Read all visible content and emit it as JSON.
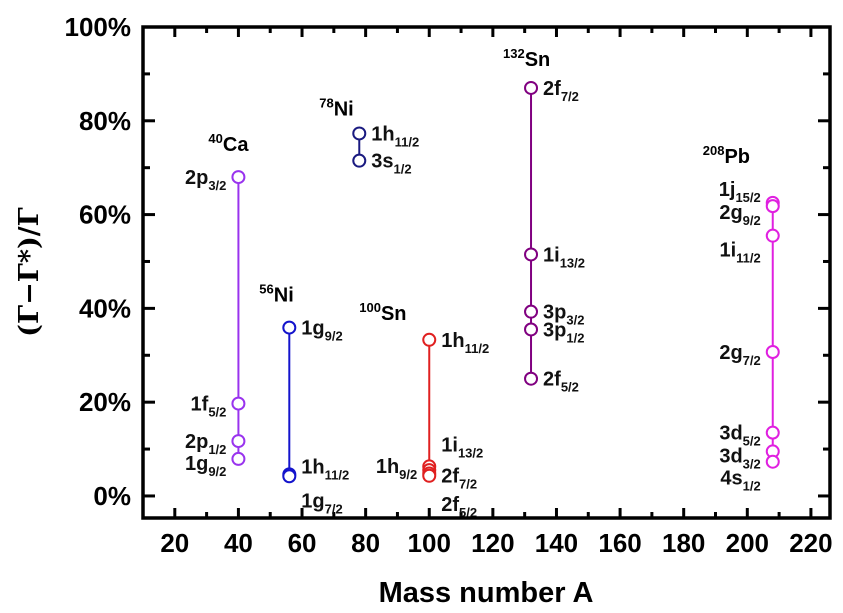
{
  "chart_data": {
    "type": "scatter",
    "xlabel": "Mass number A",
    "ylabel": "(Γ−Γ*)/Γ",
    "xlim": [
      10,
      226
    ],
    "ylim": [
      -4.7,
      100
    ],
    "xticks": [
      20,
      40,
      60,
      80,
      100,
      120,
      140,
      160,
      180,
      200,
      220
    ],
    "yticks": [
      0,
      20,
      40,
      60,
      80,
      100
    ],
    "ytick_labels": [
      "0%",
      "20%",
      "40%",
      "60%",
      "80%",
      "100%"
    ],
    "grid": false,
    "series": [
      {
        "mass": "40",
        "element": "Ca",
        "A": 40,
        "color": "#9933ee",
        "points": [
          {
            "orbital": "2p",
            "j": "3/2",
            "value": 68.0
          },
          {
            "orbital": "1f",
            "j": "5/2",
            "value": 19.7
          },
          {
            "orbital": "2p",
            "j": "1/2",
            "value": 11.7
          },
          {
            "orbital": "1g",
            "j": "9/2",
            "value": 7.9
          }
        ]
      },
      {
        "mass": "56",
        "element": "Ni",
        "A": 56,
        "color": "#1414cc",
        "points": [
          {
            "orbital": "1g",
            "j": "9/2",
            "value": 35.9
          },
          {
            "orbital": "1h",
            "j": "11/2",
            "value": 4.6
          },
          {
            "orbital": "1g",
            "j": "7/2",
            "value": 4.2
          }
        ]
      },
      {
        "mass": "78",
        "element": "Ni",
        "A": 78,
        "color": "#1a1a80",
        "points": [
          {
            "orbital": "1h",
            "j": "11/2",
            "value": 77.3
          },
          {
            "orbital": "3s",
            "j": "1/2",
            "value": 71.5
          }
        ]
      },
      {
        "mass": "100",
        "element": "Sn",
        "A": 100,
        "color": "#e02020",
        "points": [
          {
            "orbital": "1h",
            "j": "11/2",
            "value": 33.3
          },
          {
            "orbital": "1i",
            "j": "13/2",
            "value": 6.3
          },
          {
            "orbital": "1h",
            "j": "9/2",
            "value": 5.5
          },
          {
            "orbital": "2f",
            "j": "7/2",
            "value": 4.8
          },
          {
            "orbital": "2f",
            "j": "5/2",
            "value": 4.3
          }
        ]
      },
      {
        "mass": "132",
        "element": "Sn",
        "A": 132,
        "color": "#800080",
        "points": [
          {
            "orbital": "2f",
            "j": "7/2",
            "value": 87.0
          },
          {
            "orbital": "1i",
            "j": "13/2",
            "value": 51.5
          },
          {
            "orbital": "3p",
            "j": "3/2",
            "value": 39.3
          },
          {
            "orbital": "3p",
            "j": "1/2",
            "value": 35.5
          },
          {
            "orbital": "2f",
            "j": "5/2",
            "value": 25.0
          }
        ]
      },
      {
        "mass": "208",
        "element": "Pb",
        "A": 208,
        "color": "#e020e0",
        "points": [
          {
            "orbital": "1j",
            "j": "15/2",
            "value": 62.5
          },
          {
            "orbital": "2g",
            "j": "9/2",
            "value": 61.8
          },
          {
            "orbital": "1i",
            "j": "11/2",
            "value": 55.5
          },
          {
            "orbital": "2g",
            "j": "7/2",
            "value": 30.7
          },
          {
            "orbital": "3d",
            "j": "5/2",
            "value": 13.5
          },
          {
            "orbital": "3d",
            "j": "3/2",
            "value": 9.5
          },
          {
            "orbital": "4s",
            "j": "1/2",
            "value": 7.3
          }
        ]
      }
    ]
  }
}
